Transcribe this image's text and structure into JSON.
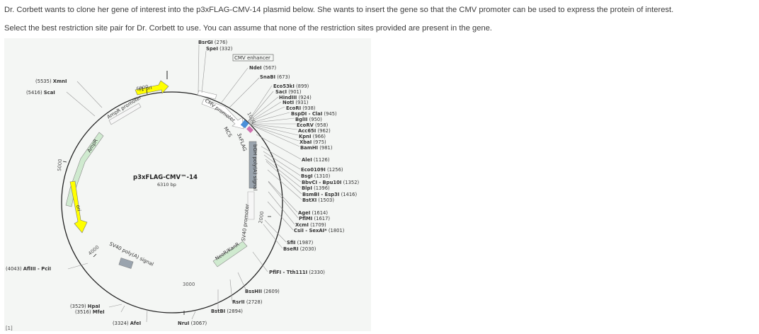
{
  "question": {
    "line1": "Dr. Corbett wants to clone her gene of interest into the p3xFLAG-CMV-14 plasmid below. She wants to insert the gene so that the CMV promoter can be used to express the protein of interest.",
    "line2": "Select the best restriction site pair for Dr. Corbett to use. You can assume that none of the restriction sites provided are present in the gene."
  },
  "plasmid": {
    "name": "p3xFLAG-CMV™-14",
    "size": "6310 bp"
  },
  "ticks": {
    "t1000": "1000",
    "t2000": "2000",
    "t3000": "3000",
    "t4000": "4000",
    "t5000": "5000",
    "t6000": "6000"
  },
  "features": {
    "f1ori": "f1 ori",
    "ampr_promoter": "AmpR promoter",
    "ampr": "AmpR",
    "ori": "ori",
    "sv40_polya": "SV40 poly(A) signal",
    "neor": "NeoR/KanR",
    "sv40_promoter": "SV40 promoter",
    "bgh": "bGH poly(A) signal",
    "cmv_enhancer": "CMV enhancer",
    "cmv_promoter": "CMV promoter",
    "mcs": "MCS",
    "flag": "3xFLAG"
  },
  "sites": {
    "bsrgi": {
      "name": "BsrGI",
      "pos": "(276)"
    },
    "spei": {
      "name": "SpeI",
      "pos": "(332)"
    },
    "ndei": {
      "name": "NdeI",
      "pos": "(567)"
    },
    "snabi": {
      "name": "SnaBI",
      "pos": "(673)"
    },
    "eco53ki": {
      "name": "Eco53kI",
      "pos": "(899)"
    },
    "saci": {
      "name": "SacI",
      "pos": "(901)"
    },
    "hindiii": {
      "name": "HindIII",
      "pos": "(924)"
    },
    "noti": {
      "name": "NotI",
      "pos": "(931)"
    },
    "ecori": {
      "name": "EcoRI",
      "pos": "(938)"
    },
    "bspdi": {
      "name": "BspDI - ClaI",
      "pos": "(945)"
    },
    "bglii": {
      "name": "BglII",
      "pos": "(950)"
    },
    "ecorv": {
      "name": "EcoRV",
      "pos": "(958)"
    },
    "acc65i": {
      "name": "Acc65I",
      "pos": "(962)"
    },
    "kpni": {
      "name": "KpnI",
      "pos": "(966)"
    },
    "xbai": {
      "name": "XbaI",
      "pos": "(975)"
    },
    "bamhi": {
      "name": "BamHI",
      "pos": "(981)"
    },
    "alei": {
      "name": "AleI",
      "pos": "(1126)"
    },
    "eco0109i": {
      "name": "Eco0109I",
      "pos": "(1256)"
    },
    "bsgi": {
      "name": "BsgI",
      "pos": "(1310)"
    },
    "bbvci": {
      "name": "BbvCI - Bpu10I",
      "pos": "(1352)"
    },
    "blpi": {
      "name": "BlpI",
      "pos": "(1396)"
    },
    "bsmbi": {
      "name": "BsmBI - Esp3I",
      "pos": "(1416)"
    },
    "bstxi": {
      "name": "BstXI",
      "pos": "(1503)"
    },
    "agei": {
      "name": "AgeI",
      "pos": "(1614)"
    },
    "pflmi": {
      "name": "PflMI",
      "pos": "(1617)"
    },
    "xcmi": {
      "name": "XcmI",
      "pos": "(1709)"
    },
    "csii": {
      "name": "CsiI - SexAI*",
      "pos": "(1801)"
    },
    "sfii": {
      "name": "SfiI",
      "pos": "(1987)"
    },
    "bseri": {
      "name": "BseRI",
      "pos": "(2030)"
    },
    "pflfi": {
      "name": "PflFI - Tth111I",
      "pos": "(2330)"
    },
    "bsshii": {
      "name": "BssHII",
      "pos": "(2609)"
    },
    "rsrii": {
      "name": "RsrII",
      "pos": "(2728)"
    },
    "bstbi": {
      "name": "BstBI",
      "pos": "(2894)"
    },
    "nrui": {
      "name": "NruI",
      "pos": "(3067)"
    },
    "afei": {
      "name": "AfeI",
      "pos": "(3324)"
    },
    "mfei": {
      "name": "MfeI",
      "pos": "(3516)"
    },
    "hpai": {
      "name": "HpaI",
      "pos": "(3529)"
    },
    "afliii": {
      "name": "AflIII - PciI",
      "pos": "(4043)"
    },
    "scai": {
      "name": "ScaI",
      "pos": "(5416)"
    },
    "xmni": {
      "name": "XmnI",
      "pos": "(5535)"
    }
  },
  "corner_label": "[1]",
  "colors": {
    "f1ori": "#ffff00",
    "ori": "#ffff00",
    "ampr": "#cfeacf",
    "neor": "#cfeacf",
    "cmv": "#ffffff",
    "grey_feature": "#9aa4ae",
    "mcs": "#4a90d9",
    "flag": "#d070b0"
  }
}
